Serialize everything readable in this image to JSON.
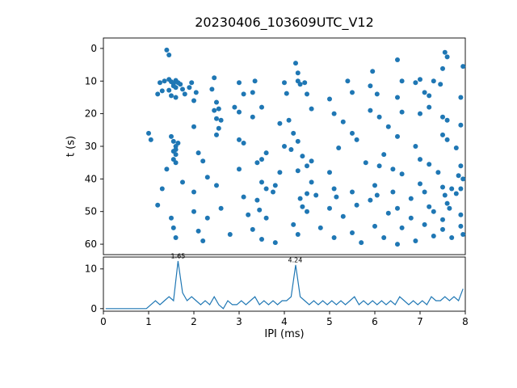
{
  "figure": {
    "title": "20230406_103609UTC_V12",
    "background": "#ffffff",
    "accent": "#1f77b4"
  },
  "chart_data": [
    {
      "type": "scatter",
      "title": "20230406_103609UTC_V12",
      "xlabel": "IPI (ms)",
      "ylabel": "t (s)",
      "xlim": [
        0,
        8
      ],
      "y_top": -3.2,
      "y_bottom": 63.2,
      "y_inverted": true,
      "y_ticks": [
        0,
        10,
        20,
        30,
        40,
        50,
        60
      ],
      "color": "#1f77b4",
      "marker_size": 3,
      "points": [
        [
          1.4,
          0.5
        ],
        [
          1.45,
          2.0
        ],
        [
          7.55,
          1.2
        ],
        [
          7.6,
          2.6
        ],
        [
          4.25,
          4.5
        ],
        [
          6.5,
          3.5
        ],
        [
          7.95,
          5.5
        ],
        [
          7.5,
          6.2
        ],
        [
          4.3,
          7.5
        ],
        [
          5.95,
          7.0
        ],
        [
          1.25,
          10.5
        ],
        [
          1.35,
          10.0
        ],
        [
          1.45,
          9.5
        ],
        [
          1.5,
          10.2
        ],
        [
          1.55,
          10.8
        ],
        [
          1.6,
          9.8
        ],
        [
          1.65,
          10.5
        ],
        [
          1.55,
          11.5
        ],
        [
          1.6,
          12.0
        ],
        [
          1.7,
          11.0
        ],
        [
          1.75,
          12.5
        ],
        [
          1.45,
          12.8
        ],
        [
          1.3,
          13.0
        ],
        [
          1.9,
          12.0
        ],
        [
          1.95,
          10.5
        ],
        [
          2.4,
          12.5
        ],
        [
          2.45,
          9.0
        ],
        [
          3.0,
          10.5
        ],
        [
          3.35,
          10.0
        ],
        [
          4.0,
          10.5
        ],
        [
          4.3,
          10.0
        ],
        [
          4.35,
          11.0
        ],
        [
          4.45,
          10.5
        ],
        [
          5.4,
          10.0
        ],
        [
          5.9,
          11.5
        ],
        [
          6.6,
          10.0
        ],
        [
          6.9,
          10.5
        ],
        [
          7.0,
          9.5
        ],
        [
          7.3,
          10.0
        ],
        [
          7.45,
          11.0
        ],
        [
          1.2,
          14.0
        ],
        [
          1.5,
          14.5
        ],
        [
          1.6,
          15.0
        ],
        [
          1.8,
          14.0
        ],
        [
          2.0,
          16.0
        ],
        [
          2.05,
          13.5
        ],
        [
          3.1,
          14.0
        ],
        [
          3.3,
          13.5
        ],
        [
          4.05,
          13.8
        ],
        [
          4.5,
          14.0
        ],
        [
          5.0,
          15.5
        ],
        [
          5.5,
          13.5
        ],
        [
          6.05,
          14.0
        ],
        [
          6.5,
          15.0
        ],
        [
          7.1,
          13.5
        ],
        [
          7.2,
          14.5
        ],
        [
          7.9,
          15.0
        ],
        [
          2.5,
          16.5
        ],
        [
          2.45,
          19.0
        ],
        [
          2.55,
          18.5
        ],
        [
          2.9,
          18.0
        ],
        [
          3.0,
          19.5
        ],
        [
          3.3,
          21.0
        ],
        [
          2.5,
          21.5
        ],
        [
          2.6,
          22.0
        ],
        [
          3.5,
          18.0
        ],
        [
          4.6,
          18.5
        ],
        [
          5.1,
          20.0
        ],
        [
          5.9,
          19.0
        ],
        [
          6.1,
          21.0
        ],
        [
          6.6,
          19.5
        ],
        [
          7.0,
          20.0
        ],
        [
          7.2,
          18.0
        ],
        [
          7.5,
          21.0
        ],
        [
          7.6,
          22.0
        ],
        [
          5.3,
          22.5
        ],
        [
          4.1,
          22.0
        ],
        [
          3.9,
          23.0
        ],
        [
          2.0,
          24.0
        ],
        [
          2.55,
          24.5
        ],
        [
          6.3,
          24.0
        ],
        [
          7.9,
          23.5
        ],
        [
          1.0,
          26.0
        ],
        [
          1.05,
          28.0
        ],
        [
          1.5,
          27.0
        ],
        [
          1.55,
          28.5
        ],
        [
          1.6,
          30.0
        ],
        [
          1.65,
          29.0
        ],
        [
          1.6,
          31.0
        ],
        [
          1.55,
          31.5
        ],
        [
          2.5,
          26.5
        ],
        [
          3.0,
          28.0
        ],
        [
          3.1,
          29.0
        ],
        [
          4.2,
          26.0
        ],
        [
          4.3,
          28.5
        ],
        [
          5.5,
          26.0
        ],
        [
          5.6,
          28.0
        ],
        [
          6.5,
          27.0
        ],
        [
          7.5,
          26.5
        ],
        [
          7.6,
          28.0
        ],
        [
          4.0,
          30.0
        ],
        [
          4.15,
          31.0
        ],
        [
          5.2,
          30.5
        ],
        [
          6.9,
          30.0
        ],
        [
          7.8,
          30.5
        ],
        [
          1.6,
          32.5
        ],
        [
          2.1,
          32.0
        ],
        [
          3.6,
          32.0
        ],
        [
          4.4,
          33.0
        ],
        [
          6.2,
          32.5
        ],
        [
          1.55,
          34.0
        ],
        [
          1.6,
          35.0
        ],
        [
          2.2,
          34.5
        ],
        [
          3.4,
          35.0
        ],
        [
          3.5,
          34.0
        ],
        [
          4.5,
          36.0
        ],
        [
          4.6,
          34.5
        ],
        [
          5.8,
          35.0
        ],
        [
          6.1,
          36.0
        ],
        [
          7.0,
          34.0
        ],
        [
          7.2,
          35.5
        ],
        [
          7.9,
          36.0
        ],
        [
          3.0,
          37.0
        ],
        [
          3.9,
          38.0
        ],
        [
          4.3,
          37.5
        ],
        [
          5.0,
          38.0
        ],
        [
          6.4,
          37.0
        ],
        [
          6.6,
          38.5
        ],
        [
          7.4,
          38.0
        ],
        [
          7.85,
          39.0
        ],
        [
          2.3,
          39.5
        ],
        [
          1.4,
          37.0
        ],
        [
          1.3,
          43.0
        ],
        [
          1.75,
          41.0
        ],
        [
          2.0,
          44.0
        ],
        [
          2.5,
          42.0
        ],
        [
          3.1,
          45.5
        ],
        [
          3.5,
          41.0
        ],
        [
          3.6,
          43.0
        ],
        [
          3.75,
          44.0
        ],
        [
          3.8,
          42.0
        ],
        [
          4.5,
          44.5
        ],
        [
          4.6,
          41.0
        ],
        [
          4.7,
          45.0
        ],
        [
          5.1,
          43.0
        ],
        [
          5.15,
          45.5
        ],
        [
          5.5,
          44.0
        ],
        [
          6.0,
          42.0
        ],
        [
          6.05,
          45.0
        ],
        [
          6.4,
          44.0
        ],
        [
          7.0,
          41.5
        ],
        [
          7.1,
          44.0
        ],
        [
          7.5,
          42.5
        ],
        [
          7.55,
          45.0
        ],
        [
          7.7,
          43.0
        ],
        [
          7.8,
          44.5
        ],
        [
          7.95,
          40.0
        ],
        [
          7.9,
          43.0
        ],
        [
          6.8,
          46.0
        ],
        [
          5.9,
          46.5
        ],
        [
          4.35,
          46.0
        ],
        [
          3.4,
          46.5
        ],
        [
          1.2,
          48.0
        ],
        [
          1.5,
          52.0
        ],
        [
          2.0,
          50.0
        ],
        [
          2.6,
          49.0
        ],
        [
          3.2,
          51.0
        ],
        [
          3.45,
          49.5
        ],
        [
          3.6,
          52.0
        ],
        [
          4.4,
          48.5
        ],
        [
          4.5,
          50.0
        ],
        [
          5.0,
          49.0
        ],
        [
          5.3,
          51.5
        ],
        [
          5.6,
          48.0
        ],
        [
          6.3,
          50.5
        ],
        [
          6.5,
          49.0
        ],
        [
          6.8,
          52.0
        ],
        [
          7.2,
          48.5
        ],
        [
          7.3,
          50.0
        ],
        [
          7.6,
          47.5
        ],
        [
          7.65,
          49.0
        ],
        [
          7.9,
          51.0
        ],
        [
          7.5,
          52.5
        ],
        [
          2.3,
          52.0
        ],
        [
          1.55,
          55.0
        ],
        [
          1.6,
          58.0
        ],
        [
          2.1,
          56.0
        ],
        [
          2.2,
          59.0
        ],
        [
          2.8,
          57.0
        ],
        [
          3.3,
          55.5
        ],
        [
          3.5,
          58.5
        ],
        [
          4.2,
          54.0
        ],
        [
          4.3,
          57.0
        ],
        [
          4.8,
          55.0
        ],
        [
          5.1,
          58.0
        ],
        [
          5.5,
          56.5
        ],
        [
          6.0,
          54.5
        ],
        [
          6.2,
          58.0
        ],
        [
          6.6,
          55.0
        ],
        [
          6.9,
          59.0
        ],
        [
          7.1,
          54.0
        ],
        [
          7.3,
          57.5
        ],
        [
          7.5,
          55.5
        ],
        [
          7.7,
          58.0
        ],
        [
          7.9,
          54.5
        ],
        [
          7.95,
          57.0
        ],
        [
          3.8,
          59.5
        ],
        [
          5.7,
          59.5
        ],
        [
          6.5,
          60.0
        ]
      ]
    },
    {
      "type": "line",
      "title": "",
      "xlabel": "IPI (ms)",
      "ylabel": "",
      "xlim": [
        0,
        8
      ],
      "y_top": 13,
      "y_bottom": -0.65,
      "x_ticks": [
        0,
        1,
        2,
        3,
        4,
        5,
        6,
        7,
        8
      ],
      "y_ticks": [
        0,
        10
      ],
      "color": "#1f77b4",
      "bin_start": 0,
      "bin_width": 0.1,
      "values": [
        0,
        0,
        0,
        0,
        0,
        0,
        0,
        0,
        0,
        0,
        1,
        2,
        1,
        2,
        3,
        2,
        12,
        4,
        2,
        3,
        2,
        1,
        2,
        1,
        3,
        1,
        0,
        2,
        1,
        1,
        2,
        1,
        2,
        3,
        1,
        2,
        1,
        2,
        1,
        2,
        2,
        3,
        11,
        3,
        2,
        1,
        2,
        1,
        2,
        1,
        2,
        1,
        2,
        1,
        2,
        3,
        1,
        2,
        1,
        2,
        1,
        2,
        1,
        2,
        1,
        3,
        2,
        1,
        2,
        1,
        2,
        1,
        3,
        2,
        2,
        3,
        2,
        3,
        2,
        5
      ],
      "annotations": [
        {
          "text": "1.65",
          "x": 1.65,
          "y": 12.7
        },
        {
          "text": "4.24",
          "x": 4.24,
          "y": 11.7
        }
      ]
    }
  ]
}
